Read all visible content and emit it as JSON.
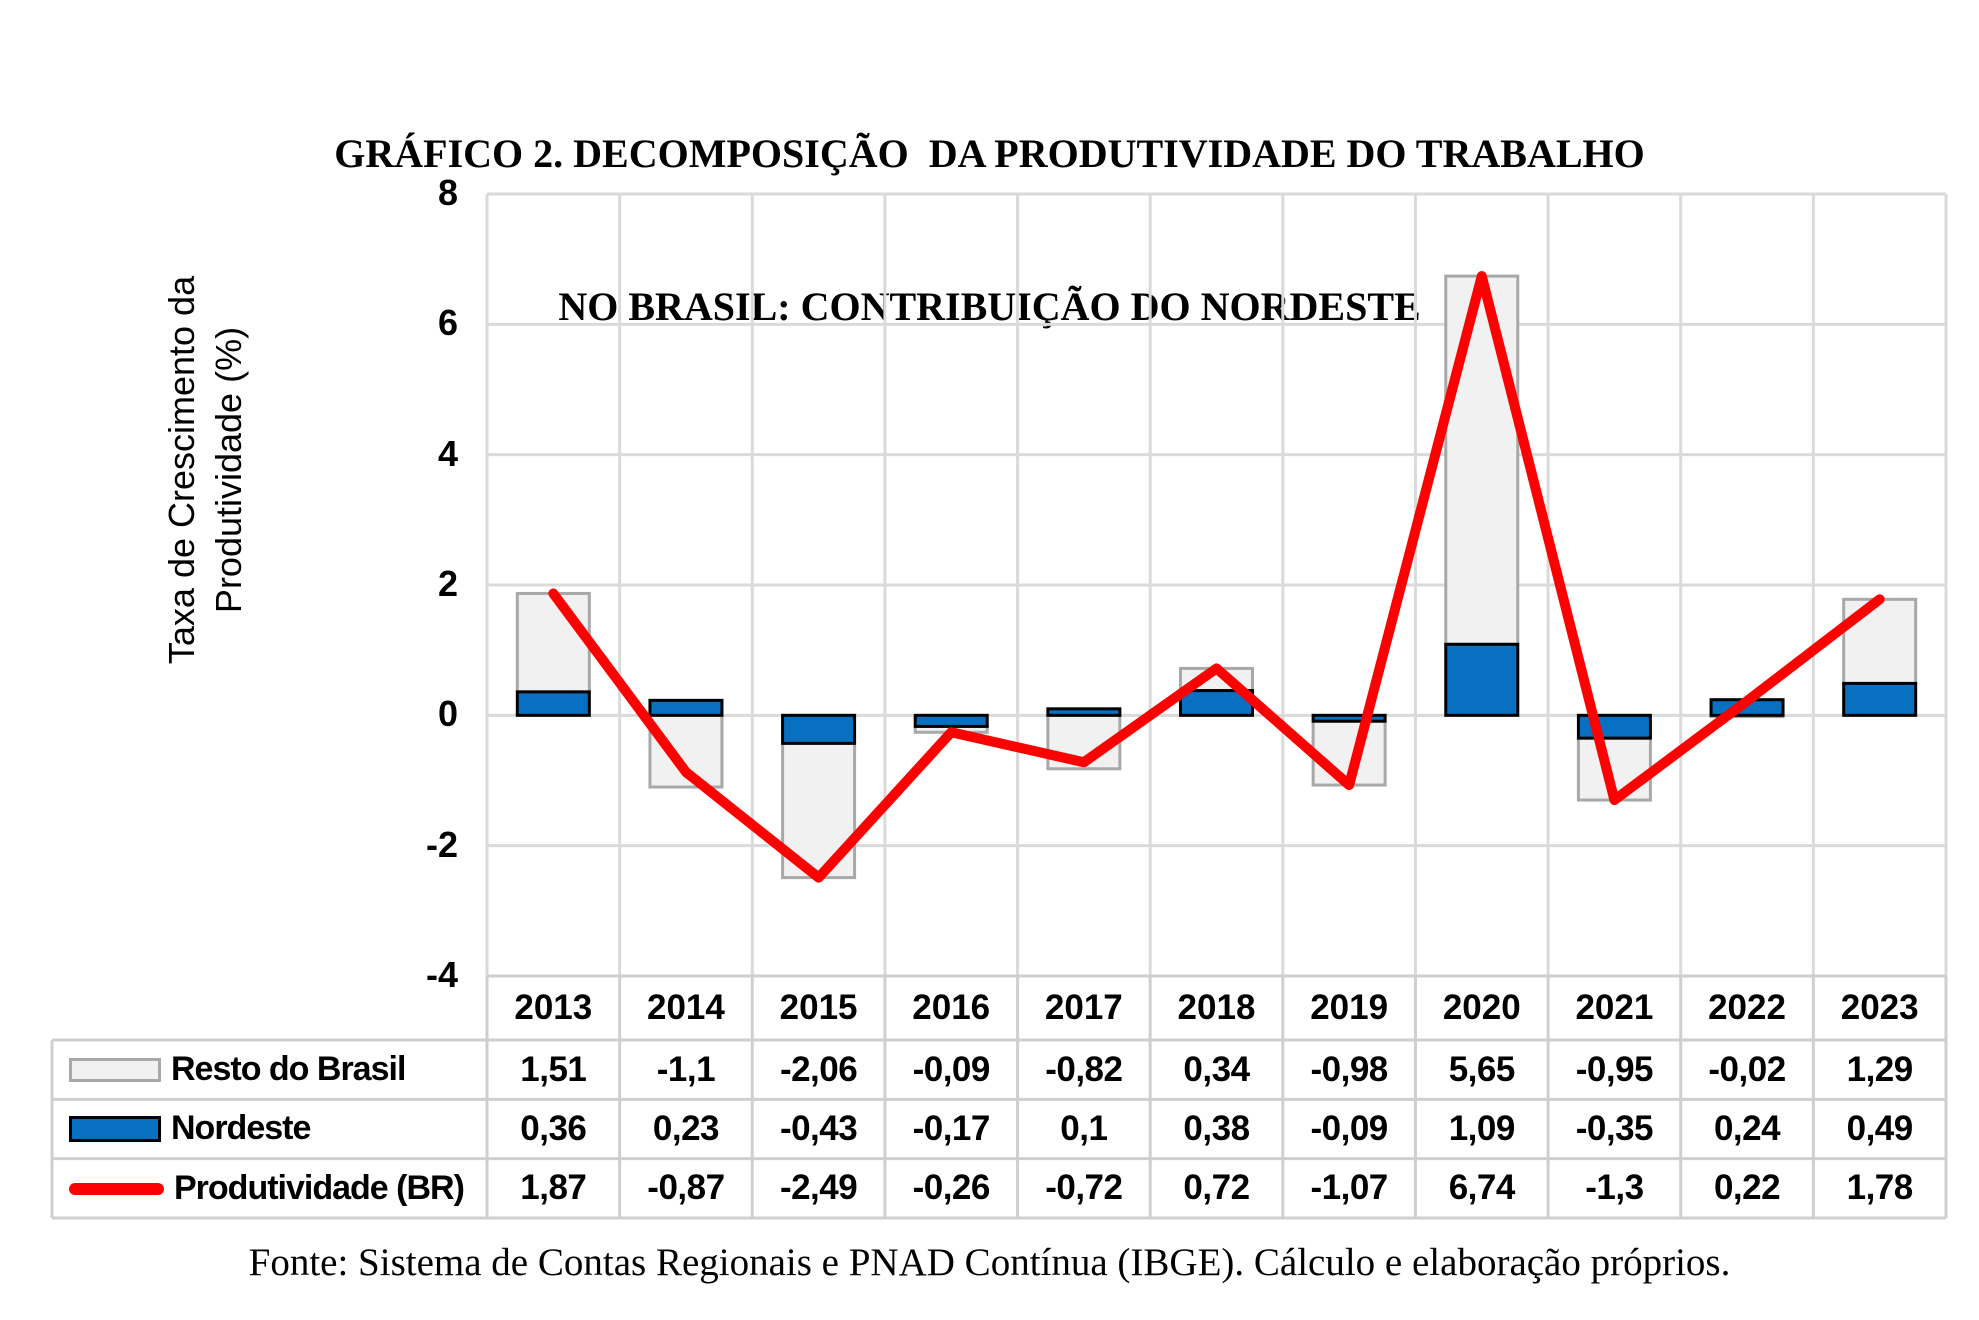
{
  "title": {
    "line1": "GRÁFICO 2. DECOMPOSIÇÃO  DA PRODUTIVIDADE DO TRABALHO",
    "line2": "NO BRASIL: CONTRIBUIÇÃO DO NORDESTE"
  },
  "y_axis": {
    "title_lines": [
      "Taxa de Crescimento da",
      "Produtividade (%)"
    ],
    "ticks": [
      8,
      6,
      4,
      2,
      0,
      -2,
      -4
    ],
    "min": -4,
    "max": 8
  },
  "chart_data": {
    "type": "bar",
    "subtype": "stacked-bars-with-line",
    "categories": [
      "2013",
      "2014",
      "2015",
      "2016",
      "2017",
      "2018",
      "2019",
      "2020",
      "2021",
      "2022",
      "2023"
    ],
    "series": [
      {
        "name": "Resto do Brasil",
        "kind": "bar",
        "color": "#F1F1F1",
        "border": "#A8A8A8",
        "values": [
          1.51,
          -1.1,
          -2.06,
          -0.09,
          -0.82,
          0.34,
          -0.98,
          5.65,
          -0.95,
          -0.02,
          1.29
        ],
        "labels": [
          "1,51",
          "-1,1",
          "-2,06",
          "-0,09",
          "-0,82",
          "0,34",
          "-0,98",
          "5,65",
          "-0,95",
          "-0,02",
          "1,29"
        ]
      },
      {
        "name": "Nordeste",
        "kind": "bar",
        "color": "#0770C1",
        "border": "#000000",
        "values": [
          0.36,
          0.23,
          -0.43,
          -0.17,
          0.1,
          0.38,
          -0.09,
          1.09,
          -0.35,
          0.24,
          0.49
        ],
        "labels": [
          "0,36",
          "0,23",
          "-0,43",
          "-0,17",
          "0,1",
          "0,38",
          "-0,09",
          "1,09",
          "-0,35",
          "0,24",
          "0,49"
        ]
      },
      {
        "name": "Produtividade (BR)",
        "kind": "line",
        "color": "#FF0000",
        "values": [
          1.87,
          -0.87,
          -2.49,
          -0.26,
          -0.72,
          0.72,
          -1.07,
          6.74,
          -1.3,
          0.22,
          1.78
        ],
        "labels": [
          "1,87",
          "-0,87",
          "-2,49",
          "-0,26",
          "-0,72",
          "0,72",
          "-1,07",
          "6,74",
          "-1,3",
          "0,22",
          "1,78"
        ]
      }
    ],
    "ylim": [
      -4,
      8
    ],
    "grid": true,
    "legend_position": "table-left"
  },
  "footer": "Fonte: Sistema de Contas Regionais e PNAD Contínua (IBGE). Cálculo e elaboração próprios."
}
